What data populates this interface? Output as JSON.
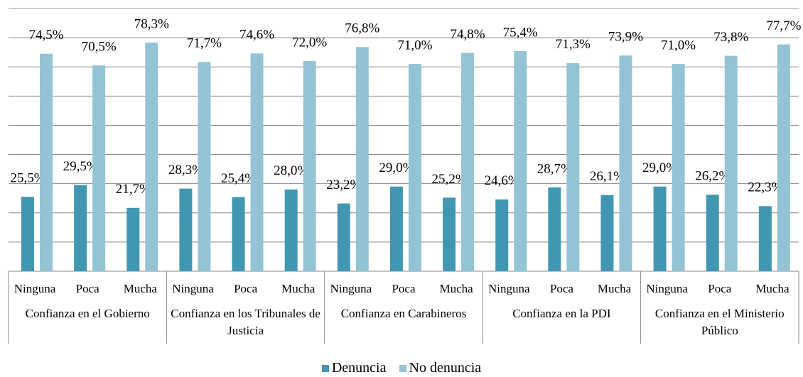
{
  "chart_data": {
    "type": "bar",
    "categories": [
      "Ninguna",
      "Poca",
      "Mucha",
      "Ninguna",
      "Poca",
      "Mucha",
      "Ninguna",
      "Poca",
      "Mucha",
      "Ninguna",
      "Poca",
      "Mucha",
      "Ninguna",
      "Poca",
      "Mucha"
    ],
    "groups": [
      "Confianza en el Gobierno",
      "Confianza en los Tribunales de Justicia",
      "Confianza en Carabineros",
      "Confianza en la PDI",
      "Confianza en el Ministerio Público"
    ],
    "series": [
      {
        "name": "Denuncia",
        "color": "#4197b2",
        "values": [
          25.5,
          29.5,
          21.7,
          28.3,
          25.4,
          28.0,
          23.2,
          29.0,
          25.2,
          24.6,
          28.7,
          26.1,
          29.0,
          26.2,
          22.3
        ],
        "value_labels": [
          "25,5%",
          "29,5%",
          "21,7%",
          "28,3%",
          "25,4%",
          "28,0%",
          "23,2%",
          "29,0%",
          "25,2%",
          "24,6%",
          "28,7%",
          "26,1%",
          "29,0%",
          "26,2%",
          "22,3%"
        ]
      },
      {
        "name": "No denuncia",
        "color": "#93c4d6",
        "values": [
          74.5,
          70.5,
          78.3,
          71.7,
          74.6,
          72.0,
          76.8,
          71.0,
          74.8,
          75.4,
          71.3,
          73.9,
          71.0,
          73.8,
          77.7
        ],
        "value_labels": [
          "74,5%",
          "70,5%",
          "78,3%",
          "71,7%",
          "74,6%",
          "72,0%",
          "76,8%",
          "71,0%",
          "74,8%",
          "75,4%",
          "71,3%",
          "73,9%",
          "71,0%",
          "73,8%",
          "77,7%"
        ]
      }
    ],
    "ylim": [
      0,
      90
    ],
    "yticks": [
      0,
      10,
      20,
      30,
      40,
      50,
      60,
      70,
      80,
      90
    ],
    "grid": true
  }
}
